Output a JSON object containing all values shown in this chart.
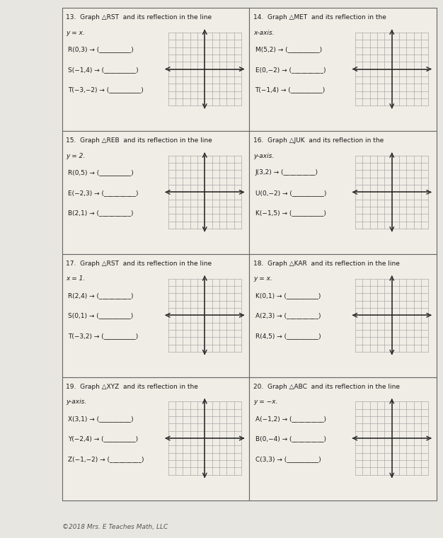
{
  "bg_color": "#e8e6e0",
  "cell_bg": "#f0ede6",
  "grid_bg": "#f5f3ee",
  "border_color": "#888888",
  "text_color": "#1a1a1a",
  "grid_line_color": "#999999",
  "axis_color": "#222222",
  "copyright": "©2018 Mrs. E Teaches Math, LLC",
  "problems": [
    {
      "num": "13.",
      "title1": "Graph △RST  and its reflection in the line",
      "title2": "y = x.",
      "points": [
        "R(0,3) → (__________)",
        "S(−1,4) → (__________)",
        "T(−3,−2) → (__________)"
      ]
    },
    {
      "num": "14.",
      "title1": "Graph △MET  and its reflection in the",
      "title2": "x-axis.",
      "points": [
        "M(5,2) → (__________)",
        "E(0,−2) → (__________)",
        "T(−1,4) → (__________)"
      ]
    },
    {
      "num": "15.",
      "title1": "Graph △REB  and its reflection in the line",
      "title2": "y = 2.",
      "points": [
        "R(0,5) → (__________)",
        "E(−2,3) → (__________)",
        "B(2,1) → (__________)"
      ]
    },
    {
      "num": "16.",
      "title1": "Graph △JUK  and its reflection in the",
      "title2": "y-axis.",
      "points": [
        "J(3,2) → (__________)",
        "U(0,−2) → (__________)",
        "K(−1,5) → (__________)"
      ]
    },
    {
      "num": "17.",
      "title1": "Graph △RST  and its reflection in the line",
      "title2": "x = 1.",
      "points": [
        "R(2,4) → (__________)",
        "S(0,1) → (__________)",
        "T(−3,2) → (__________)"
      ]
    },
    {
      "num": "18.",
      "title1": "Graph △KAR  and its reflection in the line",
      "title2": "y = x.",
      "points": [
        "K(0,1) → (__________)",
        "A(2,3) → (__________)",
        "R(4,5) → (__________)"
      ]
    },
    {
      "num": "19.",
      "title1": "Graph △XYZ  and its reflection in the",
      "title2": "y-axis.",
      "points": [
        "X(3,1) → (__________)",
        "Y(−2,4) → (__________)",
        "Z(−1,−2) → (__________)"
      ]
    },
    {
      "num": "20.",
      "title1": "Graph △ABC  and its reflection in the line",
      "title2": "y = −x.",
      "points": [
        "A(−1,2) → (__________)",
        "B(0,−4) → (__________)",
        "C(3,3) → (__________)"
      ]
    }
  ]
}
